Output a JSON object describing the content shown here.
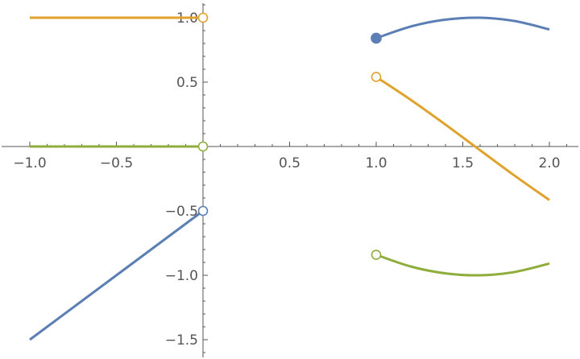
{
  "chart_data": {
    "type": "line",
    "title": "",
    "xlabel": "",
    "ylabel": "",
    "xlim": [
      -1.0,
      2.16
    ],
    "ylim": [
      -1.62,
      1.12
    ],
    "x_ticks": [
      {
        "value": -1.0,
        "label": "−1.0"
      },
      {
        "value": -0.5,
        "label": "−0.5"
      },
      {
        "value": 0.5,
        "label": "0.5"
      },
      {
        "value": 1.0,
        "label": "1.0"
      },
      {
        "value": 1.5,
        "label": "1.5"
      },
      {
        "value": 2.0,
        "label": "2.0"
      }
    ],
    "y_ticks": [
      {
        "value": 1.0,
        "label": "1.0"
      },
      {
        "value": 0.5,
        "label": "0.5"
      },
      {
        "value": -0.5,
        "label": "−0.5"
      },
      {
        "value": -1.0,
        "label": "−1.0"
      },
      {
        "value": -1.5,
        "label": "−1.5"
      }
    ],
    "colors": {
      "blue": "#5b7fb5",
      "orange": "#e0a22b",
      "green": "#8ead3a"
    },
    "series": [
      {
        "color": "blue",
        "segments": [
          {
            "points": [
              [
                -1.0,
                -1.5
              ],
              [
                -0.5,
                -1.0
              ],
              [
                0.0,
                -0.5
              ]
            ]
          },
          {
            "points": [
              [
                1.0,
                0.841
              ],
              [
                1.2,
                0.932
              ],
              [
                1.4,
                0.985
              ],
              [
                1.6,
                1.0
              ],
              [
                1.8,
                0.974
              ],
              [
                2.0,
                0.909
              ]
            ]
          }
        ],
        "markers": [
          {
            "x": 0.0,
            "y": -0.5,
            "filled": false
          },
          {
            "x": 1.0,
            "y": 0.841,
            "filled": true
          }
        ]
      },
      {
        "color": "orange",
        "segments": [
          {
            "points": [
              [
                -1.0,
                1.0
              ],
              [
                0.0,
                1.0
              ]
            ]
          },
          {
            "points": [
              [
                1.0,
                0.54
              ],
              [
                1.2,
                0.362
              ],
              [
                1.4,
                0.17
              ],
              [
                1.6,
                -0.029
              ],
              [
                1.8,
                -0.227
              ],
              [
                2.0,
                -0.416
              ]
            ]
          }
        ],
        "markers": [
          {
            "x": 0.0,
            "y": 1.0,
            "filled": false
          },
          {
            "x": 1.0,
            "y": 0.54,
            "filled": false
          }
        ]
      },
      {
        "color": "green",
        "segments": [
          {
            "points": [
              [
                -1.0,
                0.0
              ],
              [
                0.0,
                0.0
              ]
            ]
          },
          {
            "points": [
              [
                1.0,
                -0.841
              ],
              [
                1.2,
                -0.932
              ],
              [
                1.4,
                -0.985
              ],
              [
                1.6,
                -1.0
              ],
              [
                1.8,
                -0.974
              ],
              [
                2.0,
                -0.909
              ]
            ]
          }
        ],
        "markers": [
          {
            "x": 0.0,
            "y": 0.0,
            "filled": false
          },
          {
            "x": 1.0,
            "y": -0.841,
            "filled": false
          }
        ]
      }
    ]
  }
}
